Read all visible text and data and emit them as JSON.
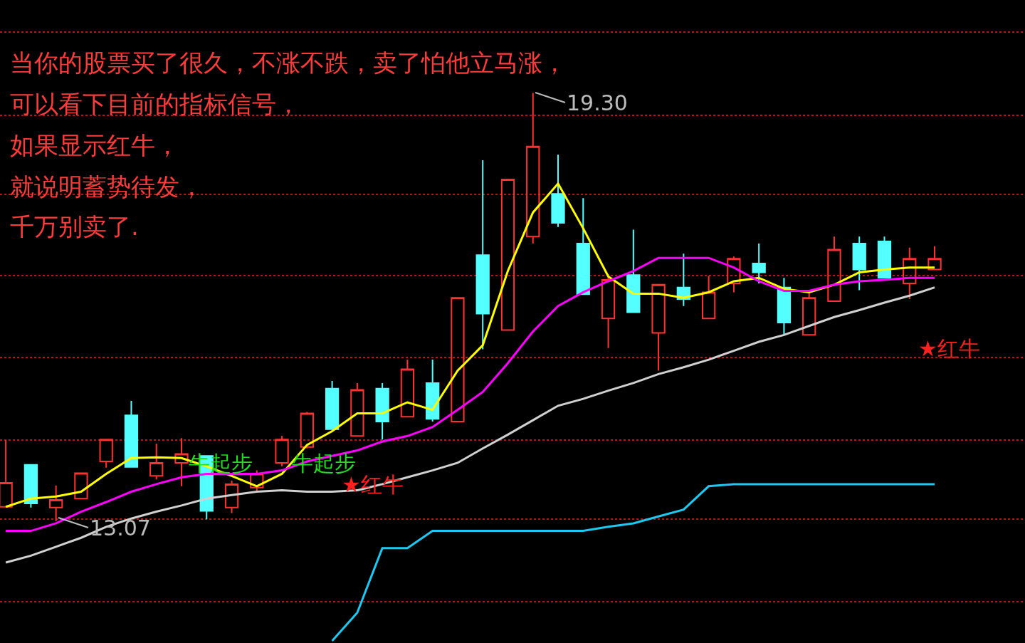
{
  "chart_data": {
    "type": "candlestick",
    "categories": [
      null,
      null,
      null,
      null,
      null,
      null,
      null,
      null,
      null,
      null,
      null,
      null,
      null,
      null,
      null,
      null,
      null,
      null,
      null,
      null,
      null,
      null,
      null,
      null,
      null,
      null,
      null,
      null,
      null,
      null,
      null,
      null,
      null,
      null,
      null,
      null,
      null,
      null
    ],
    "ohlc": [
      [
        13.28,
        14.25,
        13.28,
        13.63
      ],
      [
        13.89,
        13.89,
        13.27,
        13.33
      ],
      [
        13.27,
        13.59,
        13.07,
        13.38
      ],
      [
        13.4,
        13.77,
        13.4,
        13.77
      ],
      [
        13.94,
        14.26,
        13.85,
        14.26
      ],
      [
        14.61,
        14.82,
        13.86,
        13.86
      ],
      [
        13.73,
        14.2,
        13.68,
        13.92
      ],
      [
        13.92,
        14.28,
        13.58,
        14.05
      ],
      [
        14.02,
        14.02,
        13.1,
        13.22
      ],
      [
        13.27,
        13.66,
        13.19,
        13.61
      ],
      [
        13.56,
        13.81,
        13.5,
        13.76
      ],
      [
        13.92,
        14.31,
        13.87,
        14.26
      ],
      [
        14.15,
        14.66,
        14.13,
        14.64
      ],
      [
        15.0,
        15.11,
        14.41,
        14.41
      ],
      [
        14.31,
        15.08,
        14.31,
        14.98
      ],
      [
        15.0,
        15.08,
        14.26,
        14.52
      ],
      [
        14.59,
        15.42,
        14.59,
        15.28
      ],
      [
        15.08,
        15.42,
        14.52,
        14.56
      ],
      [
        14.52,
        16.32,
        14.52,
        16.32
      ],
      [
        16.94,
        18.32,
        15.57,
        16.09
      ],
      [
        15.85,
        18.04,
        15.85,
        18.04
      ],
      [
        17.21,
        19.3,
        17.11,
        18.52
      ],
      [
        17.83,
        18.4,
        17.35,
        17.41
      ],
      [
        17.11,
        17.77,
        16.37,
        16.37
      ],
      [
        16.02,
        16.66,
        15.59,
        16.58
      ],
      [
        16.65,
        17.31,
        16.11,
        16.11
      ],
      [
        15.81,
        16.51,
        15.26,
        16.51
      ],
      [
        16.47,
        16.96,
        16.2,
        16.3
      ],
      [
        16.02,
        16.64,
        16.02,
        16.4
      ],
      [
        16.53,
        16.92,
        16.4,
        16.89
      ],
      [
        16.82,
        17.11,
        16.53,
        16.69
      ],
      [
        16.47,
        16.61,
        15.78,
        15.96
      ],
      [
        15.78,
        16.4,
        15.78,
        16.32
      ],
      [
        16.27,
        17.21,
        16.27,
        17.02
      ],
      [
        17.11,
        17.21,
        16.43,
        16.73
      ],
      [
        17.14,
        17.21,
        16.61,
        16.61
      ],
      [
        16.53,
        17.05,
        16.3,
        16.89
      ],
      [
        16.73,
        17.07,
        16.73,
        16.89
      ]
    ],
    "series": [
      {
        "type": "line",
        "color": "#ffff00",
        "values": [
          13.28,
          13.4,
          13.43,
          13.5,
          13.76,
          13.99,
          14.0,
          13.99,
          13.87,
          13.73,
          13.58,
          13.76,
          14.18,
          14.38,
          14.64,
          14.64,
          14.8,
          14.69,
          15.26,
          15.63,
          16.71,
          17.56,
          17.98,
          17.33,
          16.63,
          16.38,
          16.38,
          16.32,
          16.4,
          16.56,
          16.61,
          16.45,
          16.4,
          16.51,
          16.69,
          16.73,
          16.76,
          16.76
        ]
      },
      {
        "type": "line",
        "color": "#ff00ff",
        "values": [
          12.93,
          12.93,
          13.04,
          13.21,
          13.35,
          13.5,
          13.61,
          13.71,
          13.76,
          13.76,
          13.76,
          13.81,
          13.94,
          14.02,
          14.1,
          14.23,
          14.31,
          14.44,
          14.69,
          14.95,
          15.37,
          15.83,
          16.2,
          16.4,
          16.56,
          16.71,
          16.9,
          16.9,
          16.9,
          16.76,
          16.56,
          16.42,
          16.42,
          16.51,
          16.56,
          16.58,
          16.61,
          16.61
        ]
      },
      {
        "type": "line",
        "color": "#d0d0d0",
        "values": [
          12.47,
          12.57,
          12.7,
          12.83,
          12.99,
          13.11,
          13.21,
          13.3,
          13.4,
          13.45,
          13.5,
          13.52,
          13.5,
          13.5,
          13.52,
          13.61,
          13.71,
          13.81,
          13.92,
          14.13,
          14.33,
          14.54,
          14.75,
          14.85,
          14.97,
          15.08,
          15.21,
          15.31,
          15.42,
          15.55,
          15.68,
          15.78,
          15.91,
          16.04,
          16.14,
          16.25,
          16.35,
          16.47
        ]
      },
      {
        "type": "line",
        "color": "#1ec8f0",
        "values": [
          null,
          null,
          null,
          null,
          null,
          null,
          null,
          null,
          null,
          null,
          null,
          null,
          null,
          11.33,
          11.74,
          12.68,
          12.68,
          12.93,
          12.93,
          12.93,
          12.93,
          12.93,
          12.93,
          12.93,
          12.99,
          13.04,
          13.14,
          13.24,
          13.58,
          13.61,
          13.61,
          13.61,
          13.61,
          13.61,
          13.61,
          13.61,
          13.61,
          13.61
        ]
      }
    ],
    "ylim": [
      11.3,
      20.65
    ],
    "yticks": [
      {
        "value": 11.9,
        "label": null
      },
      {
        "value": 13.1,
        "label": null
      },
      {
        "value": 14.25,
        "label": null
      },
      {
        "value": 15.45,
        "label": null
      },
      {
        "value": 16.64,
        "label": null
      },
      {
        "value": 17.82,
        "label": null
      },
      {
        "value": 18.97,
        "label": null
      },
      {
        "value": 20.18,
        "label": null
      }
    ],
    "grid": "y",
    "marker": "none",
    "line_style": "solid",
    "annotations": [
      "当你的股票买了很久，不涨不跌，卖了怕他立马涨，",
      "可以看下目前的指标信号，",
      "如果显示红牛，",
      "就说明蓄势待发，",
      "千万别卖了.",
      "19.30",
      "13.07",
      "牛起步",
      "牛起步",
      "★红牛",
      "★红牛"
    ]
  }
}
